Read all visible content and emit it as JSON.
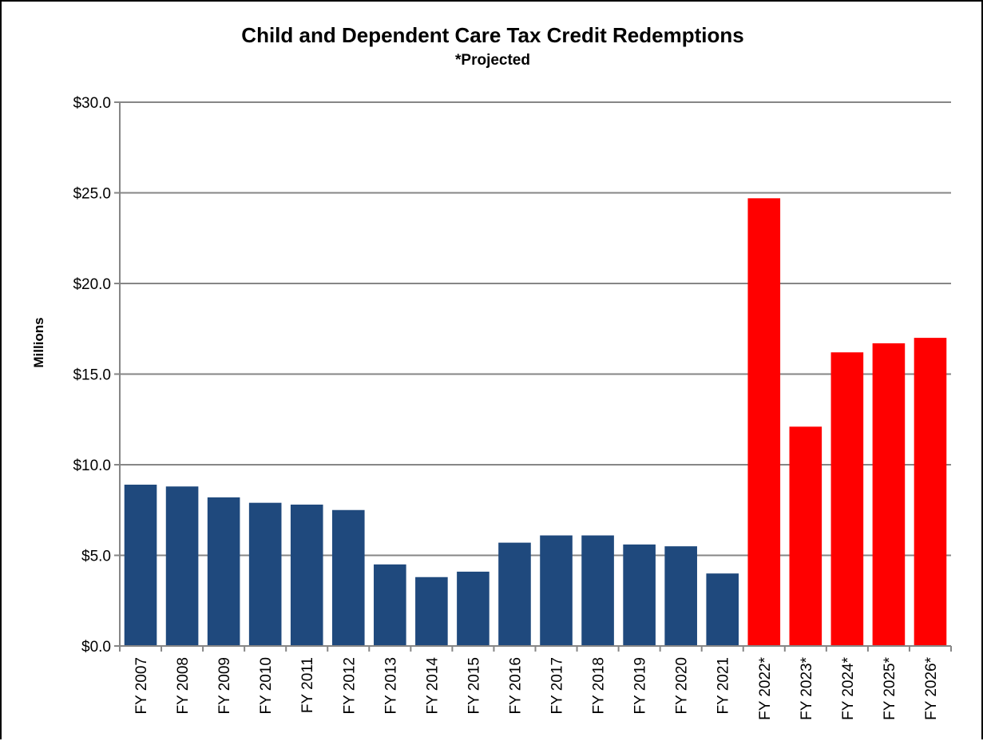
{
  "chart_data": {
    "type": "bar",
    "title": "Child and Dependent Care Tax Credit Redemptions",
    "subtitle": "*Projected",
    "ylabel": "Millions",
    "xlabel": "",
    "ylim": [
      0,
      30
    ],
    "yticks": [
      0,
      5,
      10,
      15,
      20,
      25,
      30
    ],
    "ytick_labels": [
      "$0.0",
      "$5.0",
      "$10.0",
      "$15.0",
      "$20.0",
      "$25.0",
      "$30.0"
    ],
    "grid": true,
    "legend": "none",
    "categories": [
      "FY 2007",
      "FY 2008",
      "FY 2009",
      "FY 2010",
      "FY 2011",
      "FY 2012",
      "FY 2013",
      "FY 2014",
      "FY 2015",
      "FY 2016",
      "FY 2017",
      "FY 2018",
      "FY 2019",
      "FY 2020",
      "FY 2021",
      "FY 2022*",
      "FY 2023*",
      "FY 2024*",
      "FY 2025*",
      "FY 2026*"
    ],
    "values": [
      8.9,
      8.8,
      8.2,
      7.9,
      7.8,
      7.5,
      4.5,
      3.8,
      4.1,
      5.7,
      6.1,
      6.1,
      5.6,
      5.5,
      4.0,
      24.7,
      12.1,
      16.2,
      16.7,
      17.0
    ],
    "projected": [
      false,
      false,
      false,
      false,
      false,
      false,
      false,
      false,
      false,
      false,
      false,
      false,
      false,
      false,
      false,
      true,
      true,
      true,
      true,
      true
    ],
    "colors": {
      "actual": "#1F497D",
      "projected": "#FF0000",
      "grid": "#868686",
      "axis": "#868686"
    }
  }
}
